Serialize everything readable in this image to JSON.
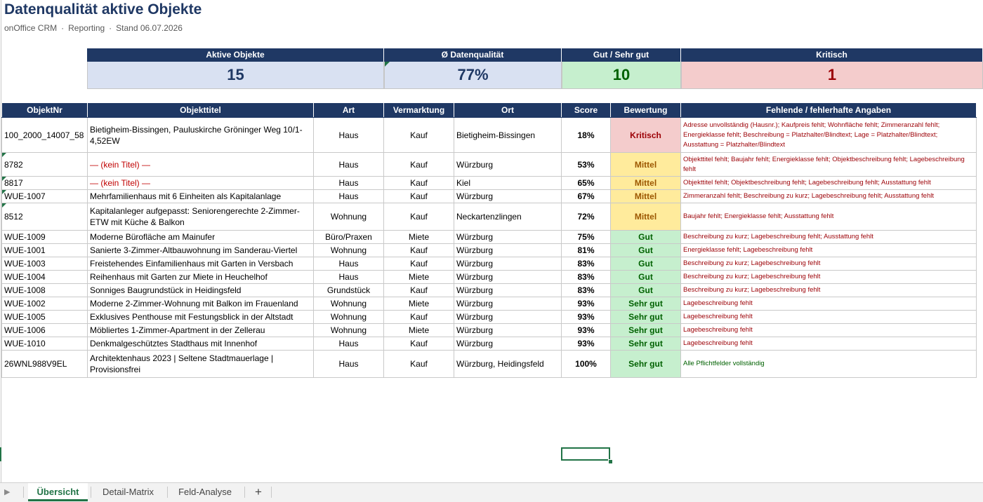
{
  "header": {
    "title": "Datenqualität aktive Objekte",
    "subtitle_parts": [
      "onOffice CRM",
      "Reporting",
      "Stand 06.07.2026"
    ],
    "separator": "·"
  },
  "kpis": [
    {
      "label": "Aktive Objekte",
      "value": "15",
      "style": "blue"
    },
    {
      "label": "Ø Datenqualität",
      "value": "77%",
      "style": "blue"
    },
    {
      "label": "Gut / Sehr gut",
      "value": "10",
      "style": "green"
    },
    {
      "label": "Kritisch",
      "value": "1",
      "style": "red"
    }
  ],
  "table": {
    "columns": [
      "ObjektNr",
      "Objekttitel",
      "Art",
      "Vermarktung",
      "Ort",
      "Score",
      "Bewertung",
      "Fehlende / fehlerhafte Angaben"
    ],
    "rows": [
      {
        "nr": "100_2000_14007_58",
        "titel": "Bietigheim-Bissingen, Pauluskirche Gröninger Weg 10/1-4,52EW",
        "art": "Haus",
        "verm": "Kauf",
        "ort": "Bietigheim-Bissingen",
        "score": "18%",
        "bew": "Kritisch",
        "fehl": "Adresse unvollständig (Hausnr.); Kaufpreis fehlt; Wohnfläche fehlt; Zimmeranzahl fehlt; Energieklasse fehlt; Beschreibung = Platzhalter/Blindtext; Lage = Platzhalter/Blindtext; Ausstattung = Platzhalter/Blindtext"
      },
      {
        "nr": "8782",
        "titel": "— (kein Titel) —",
        "art": "Haus",
        "verm": "Kauf",
        "ort": "Würzburg",
        "score": "53%",
        "bew": "Mittel",
        "fehl": "Objekttitel fehlt; Baujahr fehlt; Energieklasse fehlt; Objektbeschreibung fehlt; Lagebeschreibung fehlt"
      },
      {
        "nr": "8817",
        "titel": "— (kein Titel) —",
        "art": "Haus",
        "verm": "Kauf",
        "ort": "Kiel",
        "score": "65%",
        "bew": "Mittel",
        "fehl": "Objekttitel fehlt; Objektbeschreibung fehlt; Lagebeschreibung fehlt; Ausstattung fehlt"
      },
      {
        "nr": "WUE-1007",
        "titel": "Mehrfamilienhaus mit 6 Einheiten als Kapitalanlage",
        "art": "Haus",
        "verm": "Kauf",
        "ort": "Würzburg",
        "score": "67%",
        "bew": "Mittel",
        "fehl": "Zimmeranzahl fehlt; Beschreibung zu kurz; Lagebeschreibung fehlt; Ausstattung fehlt"
      },
      {
        "nr": "8512",
        "titel": "Kapitalanleger aufgepasst: Seniorengerechte 2-Zimmer-ETW mit Küche & Balkon",
        "art": "Wohnung",
        "verm": "Kauf",
        "ort": "Neckartenzlingen",
        "score": "72%",
        "bew": "Mittel",
        "fehl": "Baujahr fehlt; Energieklasse fehlt; Ausstattung fehlt"
      },
      {
        "nr": "WUE-1009",
        "titel": "Moderne Bürofläche am Mainufer",
        "art": "Büro/Praxen",
        "verm": "Miete",
        "ort": "Würzburg",
        "score": "75%",
        "bew": "Gut",
        "fehl": "Beschreibung zu kurz; Lagebeschreibung fehlt; Ausstattung fehlt"
      },
      {
        "nr": "WUE-1001",
        "titel": "Sanierte 3-Zimmer-Altbauwohnung im Sanderau-Viertel",
        "art": "Wohnung",
        "verm": "Kauf",
        "ort": "Würzburg",
        "score": "81%",
        "bew": "Gut",
        "fehl": "Energieklasse fehlt; Lagebeschreibung fehlt"
      },
      {
        "nr": "WUE-1003",
        "titel": "Freistehendes Einfamilienhaus mit Garten in Versbach",
        "art": "Haus",
        "verm": "Kauf",
        "ort": "Würzburg",
        "score": "83%",
        "bew": "Gut",
        "fehl": "Beschreibung zu kurz; Lagebeschreibung fehlt"
      },
      {
        "nr": "WUE-1004",
        "titel": "Reihenhaus mit Garten zur Miete in Heuchelhof",
        "art": "Haus",
        "verm": "Miete",
        "ort": "Würzburg",
        "score": "83%",
        "bew": "Gut",
        "fehl": "Beschreibung zu kurz; Lagebeschreibung fehlt"
      },
      {
        "nr": "WUE-1008",
        "titel": "Sonniges Baugrundstück in Heidingsfeld",
        "art": "Grundstück",
        "verm": "Kauf",
        "ort": "Würzburg",
        "score": "83%",
        "bew": "Gut",
        "fehl": "Beschreibung zu kurz; Lagebeschreibung fehlt"
      },
      {
        "nr": "WUE-1002",
        "titel": "Moderne 2-Zimmer-Wohnung mit Balkon im Frauenland",
        "art": "Wohnung",
        "verm": "Miete",
        "ort": "Würzburg",
        "score": "93%",
        "bew": "Sehr gut",
        "fehl": "Lagebeschreibung fehlt"
      },
      {
        "nr": "WUE-1005",
        "titel": "Exklusives Penthouse mit Festungsblick in der Altstadt",
        "art": "Wohnung",
        "verm": "Kauf",
        "ort": "Würzburg",
        "score": "93%",
        "bew": "Sehr gut",
        "fehl": "Lagebeschreibung fehlt"
      },
      {
        "nr": "WUE-1006",
        "titel": "Möbliertes 1-Zimmer-Apartment in der Zellerau",
        "art": "Wohnung",
        "verm": "Miete",
        "ort": "Würzburg",
        "score": "93%",
        "bew": "Sehr gut",
        "fehl": "Lagebeschreibung fehlt"
      },
      {
        "nr": "WUE-1010",
        "titel": "Denkmalgeschütztes Stadthaus mit Innenhof",
        "art": "Haus",
        "verm": "Kauf",
        "ort": "Würzburg",
        "score": "93%",
        "bew": "Sehr gut",
        "fehl": "Lagebeschreibung fehlt"
      },
      {
        "nr": "26WNL988V9EL",
        "titel": "Architektenhaus 2023 | Seltene Stadtmauerlage | Provisionsfrei",
        "art": "Haus",
        "verm": "Kauf",
        "ort": "Würzburg, Heidingsfeld",
        "score": "100%",
        "bew": "Sehr gut",
        "fehl": "Alle Pflichtfelder vollständig"
      }
    ]
  },
  "sheet_tabs": {
    "nav_icon": "play-icon",
    "tabs": [
      "Übersicht",
      "Detail-Matrix",
      "Feld-Analyse"
    ],
    "active": "Übersicht",
    "add_label": "+"
  },
  "colors": {
    "header_navy": "#1f3864",
    "accent_green": "#217346",
    "kritisch_bg": "#f4cccc",
    "mittel_bg": "#ffeb9c",
    "gut_bg": "#c6efce"
  }
}
